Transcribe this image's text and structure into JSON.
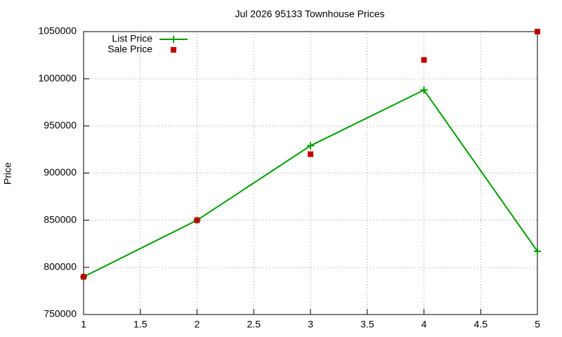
{
  "chart_data": {
    "type": "line",
    "title": "Jul 2026 95133 Townhouse Prices",
    "ylabel": "Price",
    "x": [
      1,
      2,
      3,
      4,
      5
    ],
    "series": [
      {
        "name": "List Price",
        "color": "#00a000",
        "marker": "plus",
        "line": true,
        "values": [
          790000,
          850000,
          929000,
          988000,
          817000
        ]
      },
      {
        "name": "Sale Price",
        "color": "#c00000",
        "marker": "square",
        "line": false,
        "values": [
          790000,
          850000,
          920000,
          1020000,
          1050000
        ]
      }
    ],
    "xlim": [
      1,
      5
    ],
    "xticks": [
      1,
      1.5,
      2,
      2.5,
      3,
      3.5,
      4,
      4.5,
      5
    ],
    "ylim": [
      750000,
      1050000
    ],
    "yticks": [
      750000,
      800000,
      850000,
      900000,
      950000,
      1000000,
      1050000
    ],
    "grid": true,
    "legend": "top-left"
  }
}
